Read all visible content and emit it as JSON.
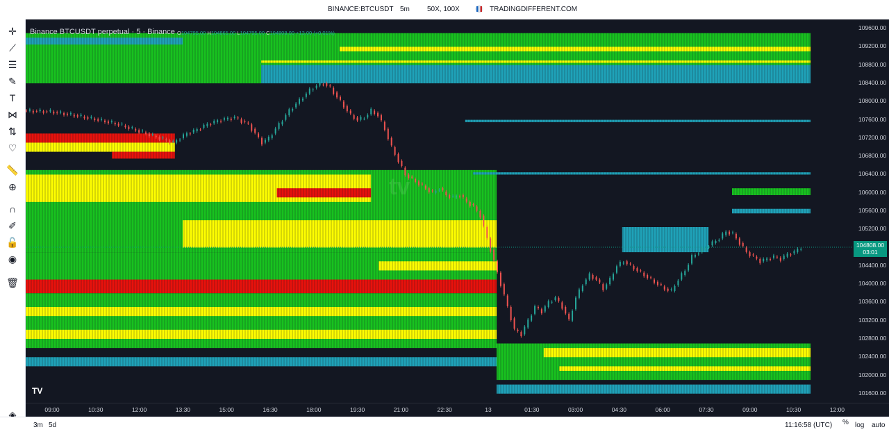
{
  "header": {
    "symbol": "BINANCE:BTCUSDT",
    "interval": "5m",
    "leverage": "50X, 100X",
    "brand": "TRADINGDIFFERENT.COM"
  },
  "chart": {
    "title": "Binance BTCUSDT perpetual · 5 · Binance",
    "ohlc": {
      "o_label": "O",
      "o": "104795.00",
      "h_label": "H",
      "h": "104865.00",
      "l_label": "L",
      "l": "104795.00",
      "c_label": "C",
      "c": "104808.00",
      "change": "+13.00 (+0.01%)"
    },
    "current_price": "104808.00",
    "countdown": "03:01",
    "tv_logo": "TV"
  },
  "price_axis": [
    "109600.00",
    "109200.00",
    "108800.00",
    "108400.00",
    "108000.00",
    "107600.00",
    "107200.00",
    "106800.00",
    "106400.00",
    "106000.00",
    "105600.00",
    "105200.00",
    "104800.00",
    "104400.00",
    "104000.00",
    "103600.00",
    "103200.00",
    "102800.00",
    "102400.00",
    "102000.00",
    "101600.00"
  ],
  "time_axis": [
    "09:00",
    "10:30",
    "12:00",
    "13:30",
    "15:00",
    "16:30",
    "18:00",
    "19:30",
    "21:00",
    "22:30",
    "13",
    "01:30",
    "03:00",
    "04:30",
    "06:00",
    "07:30",
    "09:00",
    "10:30",
    "12:00"
  ],
  "bottom": {
    "range_3m": "3m",
    "range_5d": "5d",
    "clock": "11:16:58 (UTC)",
    "percent": "%",
    "log": "log",
    "auto": "auto"
  },
  "colors": {
    "background": "#131722",
    "up": "#26a69a",
    "down": "#ef5350",
    "heat_red": "#e8120c",
    "heat_yellow": "#ffff00",
    "heat_green": "#18c21f",
    "heat_teal": "#1fa2b8"
  },
  "chart_data": {
    "type": "candlestick-heatmap",
    "price_range": [
      101400,
      109800
    ],
    "price_series": [
      [
        0,
        107800
      ],
      [
        8,
        107780
      ],
      [
        15,
        107700
      ],
      [
        22,
        107600
      ],
      [
        28,
        107500
      ],
      [
        32,
        107400
      ],
      [
        36,
        107300
      ],
      [
        40,
        107200
      ],
      [
        44,
        107100
      ],
      [
        48,
        107300
      ],
      [
        50,
        107350
      ],
      [
        54,
        107500
      ],
      [
        58,
        107600
      ],
      [
        62,
        107650
      ],
      [
        66,
        107500
      ],
      [
        68,
        107300
      ],
      [
        70,
        107100
      ],
      [
        72,
        107200
      ],
      [
        74,
        107400
      ],
      [
        76,
        107600
      ],
      [
        78,
        107800
      ],
      [
        80,
        107950
      ],
      [
        82,
        108100
      ],
      [
        84,
        108250
      ],
      [
        86,
        108350
      ],
      [
        88,
        108400
      ],
      [
        90,
        108300
      ],
      [
        92,
        108100
      ],
      [
        94,
        107900
      ],
      [
        96,
        107700
      ],
      [
        98,
        107600
      ],
      [
        100,
        107650
      ],
      [
        102,
        107800
      ],
      [
        104,
        107700
      ],
      [
        106,
        107400
      ],
      [
        108,
        107000
      ],
      [
        110,
        106700
      ],
      [
        112,
        106400
      ],
      [
        114,
        106300
      ],
      [
        116,
        106200
      ],
      [
        118,
        106100
      ],
      [
        120,
        106000
      ],
      [
        122,
        106100
      ],
      [
        124,
        105950
      ],
      [
        126,
        105900
      ],
      [
        128,
        105950
      ],
      [
        130,
        105800
      ],
      [
        132,
        105700
      ],
      [
        134,
        105500
      ],
      [
        136,
        105000
      ],
      [
        138,
        104500
      ],
      [
        140,
        104000
      ],
      [
        142,
        103500
      ],
      [
        144,
        103000
      ],
      [
        146,
        102900
      ],
      [
        148,
        103200
      ],
      [
        150,
        103500
      ],
      [
        152,
        103400
      ],
      [
        154,
        103600
      ],
      [
        156,
        103700
      ],
      [
        158,
        103500
      ],
      [
        160,
        103200
      ],
      [
        162,
        103700
      ],
      [
        164,
        104000
      ],
      [
        166,
        104200
      ],
      [
        168,
        104100
      ],
      [
        170,
        103900
      ],
      [
        172,
        104100
      ],
      [
        174,
        104400
      ],
      [
        176,
        104500
      ],
      [
        178,
        104400
      ],
      [
        180,
        104300
      ],
      [
        182,
        104200
      ],
      [
        184,
        104100
      ],
      [
        186,
        104000
      ],
      [
        188,
        103900
      ],
      [
        190,
        103850
      ],
      [
        192,
        104100
      ],
      [
        194,
        104300
      ],
      [
        196,
        104600
      ],
      [
        198,
        104700
      ],
      [
        200,
        104800
      ],
      [
        202,
        104900
      ],
      [
        204,
        105000
      ],
      [
        206,
        105150
      ],
      [
        208,
        105100
      ],
      [
        210,
        104900
      ],
      [
        212,
        104700
      ],
      [
        214,
        104600
      ],
      [
        216,
        104500
      ],
      [
        218,
        104550
      ],
      [
        220,
        104600
      ],
      [
        222,
        104550
      ],
      [
        224,
        104650
      ],
      [
        226,
        104700
      ],
      [
        228,
        104808
      ]
    ],
    "heat_bands": [
      {
        "p0": 109500,
        "p1": 108400,
        "c": "g",
        "x0": 0,
        "x1": 1
      },
      {
        "p0": 109200,
        "p1": 109100,
        "c": "y",
        "x0": 0.4,
        "x1": 1
      },
      {
        "p0": 108900,
        "p1": 108850,
        "c": "y",
        "x0": 0.3,
        "x1": 1
      },
      {
        "p0": 108800,
        "p1": 108400,
        "c": "t",
        "x0": 0.3,
        "x1": 1
      },
      {
        "p0": 109400,
        "p1": 109250,
        "c": "t",
        "x0": 0,
        "x1": 0.2
      },
      {
        "p0": 107600,
        "p1": 107550,
        "c": "t",
        "x0": 0.56,
        "x1": 1
      },
      {
        "p0": 107300,
        "p1": 107100,
        "c": "r",
        "x0": 0,
        "x1": 0.19
      },
      {
        "p0": 107100,
        "p1": 106900,
        "c": "y",
        "x0": 0,
        "x1": 0.19
      },
      {
        "p0": 106900,
        "p1": 106750,
        "c": "r",
        "x0": 0.11,
        "x1": 0.19
      },
      {
        "p0": 106500,
        "p1": 104700,
        "c": "g",
        "x0": 0,
        "x1": 0.6
      },
      {
        "p0": 106400,
        "p1": 105700,
        "c": "y",
        "x0": 0,
        "x1": 0.44
      },
      {
        "p0": 106100,
        "p1": 105900,
        "c": "r",
        "x0": 0.32,
        "x1": 0.44
      },
      {
        "p0": 105800,
        "p1": 105500,
        "c": "g",
        "x0": 0,
        "x1": 0.6
      },
      {
        "p0": 105400,
        "p1": 104800,
        "c": "y",
        "x0": 0.2,
        "x1": 0.6
      },
      {
        "p0": 104700,
        "p1": 103900,
        "c": "g",
        "x0": 0,
        "x1": 0.6
      },
      {
        "p0": 104500,
        "p1": 104300,
        "c": "y",
        "x0": 0.45,
        "x1": 0.6
      },
      {
        "p0": 104100,
        "p1": 103800,
        "c": "r",
        "x0": 0,
        "x1": 0.6
      },
      {
        "p0": 103800,
        "p1": 102600,
        "c": "g",
        "x0": 0,
        "x1": 0.6
      },
      {
        "p0": 103500,
        "p1": 103300,
        "c": "y",
        "x0": 0,
        "x1": 0.6
      },
      {
        "p0": 103000,
        "p1": 102800,
        "c": "y",
        "x0": 0,
        "x1": 0.6
      },
      {
        "p0": 102400,
        "p1": 102200,
        "c": "t",
        "x0": 0,
        "x1": 0.62
      },
      {
        "p0": 106450,
        "p1": 106400,
        "c": "t",
        "x0": 0.57,
        "x1": 1
      },
      {
        "p0": 106100,
        "p1": 105950,
        "c": "g",
        "x0": 0.9,
        "x1": 1
      },
      {
        "p0": 105650,
        "p1": 105550,
        "c": "t",
        "x0": 0.9,
        "x1": 1
      },
      {
        "p0": 105250,
        "p1": 104700,
        "c": "t",
        "x0": 0.76,
        "x1": 0.87
      },
      {
        "p0": 102700,
        "p1": 101900,
        "c": "g",
        "x0": 0.6,
        "x1": 1
      },
      {
        "p0": 102600,
        "p1": 102400,
        "c": "y",
        "x0": 0.66,
        "x1": 1
      },
      {
        "p0": 102200,
        "p1": 102100,
        "c": "y",
        "x0": 0.68,
        "x1": 1
      },
      {
        "p0": 101800,
        "p1": 101600,
        "c": "t",
        "x0": 0.6,
        "x1": 1
      }
    ]
  }
}
